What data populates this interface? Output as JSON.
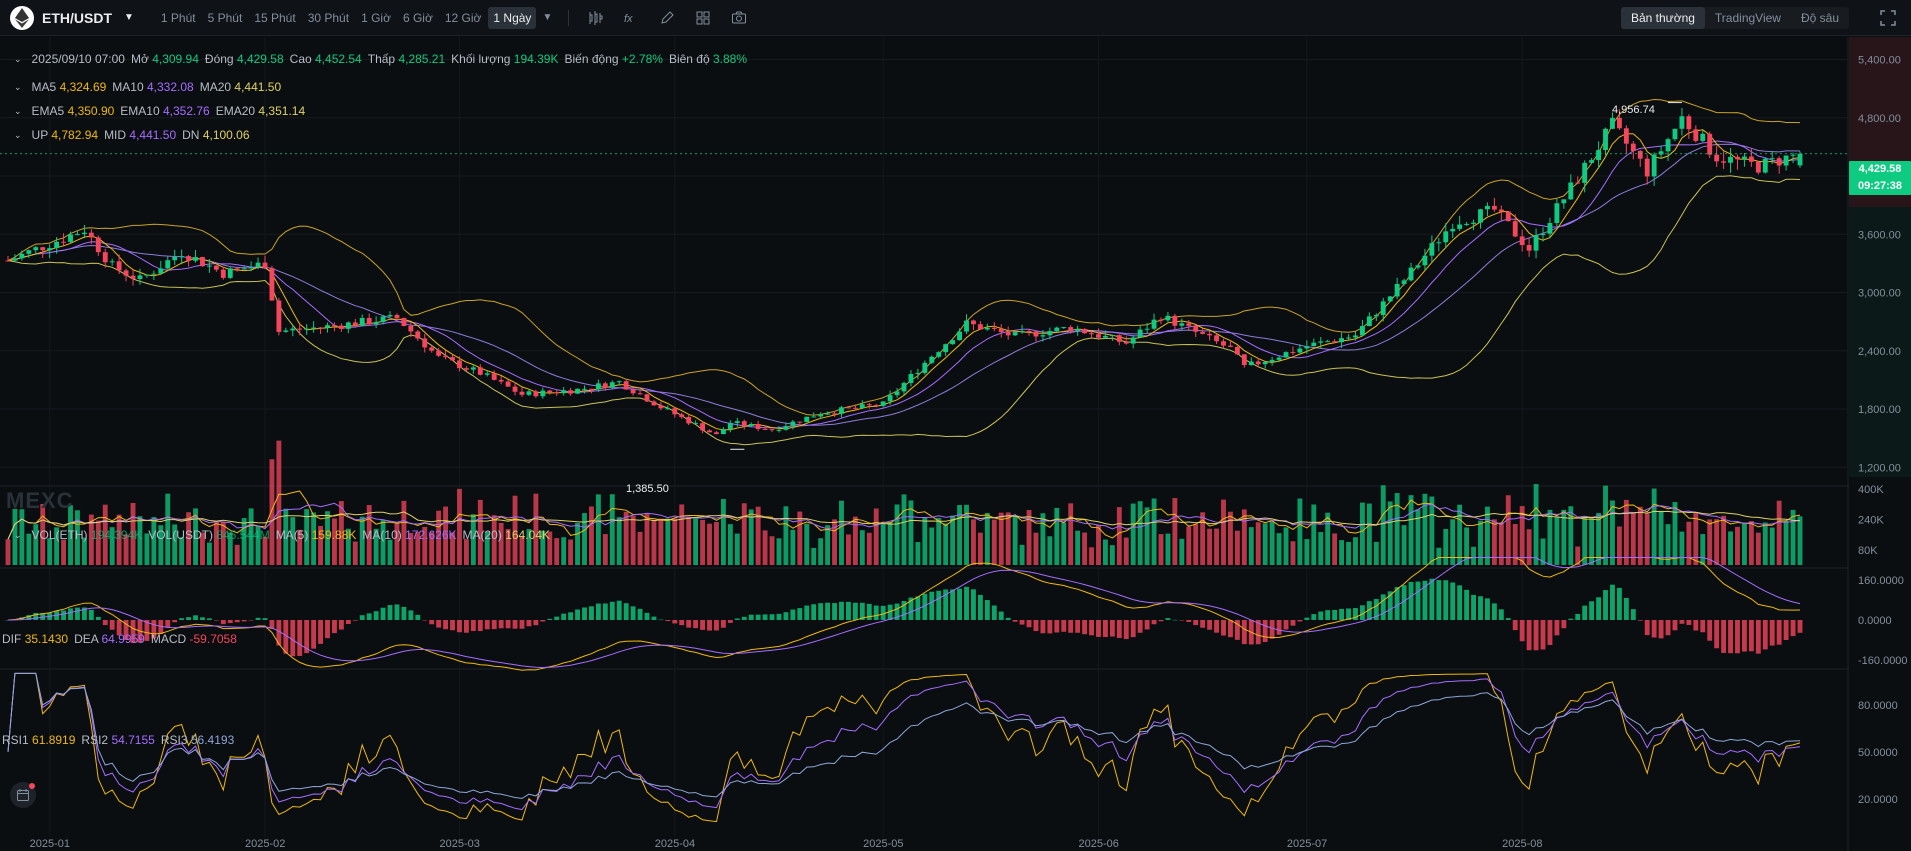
{
  "header": {
    "symbol": "ETH/USDT",
    "intervals": [
      "1 Phút",
      "5 Phút",
      "15 Phút",
      "30 Phút",
      "1 Giờ",
      "6 Giờ",
      "12 Giờ",
      "1 Ngày"
    ],
    "active_interval": "1 Ngày",
    "views": [
      "Bản thường",
      "TradingView",
      "Độ sâu"
    ],
    "active_view": "Bản thường",
    "tools": [
      "indicator-icon",
      "formula-icon",
      "pencil-icon",
      "layout-icon",
      "camera-icon"
    ]
  },
  "ohlc": {
    "date": "2025/09/10 07:00",
    "open_label": "Mở",
    "open": "4,309.94",
    "close_label": "Đóng",
    "close": "4,429.58",
    "high_label": "Cao",
    "high": "4,452.54",
    "low_label": "Thấp",
    "low": "4,285.21",
    "volume_label": "Khối lượng",
    "volume": "194.39K",
    "change_label": "Biến động",
    "change": "+2.78%",
    "amplitude_label": "Biên độ",
    "amplitude": "3.88%"
  },
  "ma": {
    "ma5_label": "MA5",
    "ma5": "4,324.69",
    "ma10_label": "MA10",
    "ma10": "4,332.08",
    "ma20_label": "MA20",
    "ma20": "4,441.50"
  },
  "ema": {
    "ema5_label": "EMA5",
    "ema5": "4,350.90",
    "ema10_label": "EMA10",
    "ema10": "4,352.76",
    "ema20_label": "EMA20",
    "ema20": "4,351.14"
  },
  "boll": {
    "up_label": "UP",
    "up": "4,782.94",
    "mid_label": "MID",
    "mid": "4,441.50",
    "dn_label": "DN",
    "dn": "4,100.06"
  },
  "vol": {
    "eth_label": "VOL(ETH)",
    "eth": "194.394K",
    "usdt_label": "VOL(USDT)",
    "usdt": "845.544M",
    "ma5_label": "MA(5)",
    "ma5": "159.88K",
    "ma10_label": "MA(10)",
    "ma10": "172.626K",
    "ma20_label": "MA(20)",
    "ma20": "164.04K"
  },
  "macd": {
    "dif_label": "DIF",
    "dif": "35.1430",
    "dea_label": "DEA",
    "dea": "64.9959",
    "macd_label": "MACD",
    "macd": "-59.7058"
  },
  "rsi": {
    "rsi1_label": "RSI1",
    "rsi1": "61.8919",
    "rsi2_label": "RSI2",
    "rsi2": "54.7155",
    "rsi3_label": "RSI3",
    "rsi3": "56.4193"
  },
  "price_axis": [
    "5,400.00",
    "4,800.00",
    "4,200.00",
    "3,600.00",
    "3,000.00",
    "2,400.00",
    "1,800.00",
    "1,200.00"
  ],
  "vol_axis": [
    "400K",
    "240K",
    "80K"
  ],
  "macd_axis": [
    "160.0000",
    "0.0000",
    "-160.0000"
  ],
  "rsi_axis": [
    "80.0000",
    "50.0000",
    "20.0000"
  ],
  "time_axis": [
    "2025-01",
    "2025-02",
    "2025-03",
    "2025-04",
    "2025-05",
    "2025-06",
    "2025-07",
    "2025-08"
  ],
  "current_price": "4,429.58",
  "countdown": "09:27:38",
  "high_marker": "4,956.74",
  "low_marker": "1,385.50",
  "watermark": "MEXC",
  "colors": {
    "up": "#0ecb81",
    "down": "#f6465d",
    "ma5": "#f0b90b",
    "ma10": "#a46dff",
    "ma20": "#e0d264",
    "bg": "#0b0e11"
  },
  "chart_data": {
    "type": "candlestick",
    "x_range": [
      "2024-12-26",
      "2025-09-10"
    ],
    "ylim": [
      1100,
      5550
    ],
    "close_path": [
      [
        "2024-12-26",
        3330
      ],
      [
        "2025-01-06",
        3650
      ],
      [
        "2025-01-10",
        3270
      ],
      [
        "2025-01-14",
        3130
      ],
      [
        "2025-01-20",
        3420
      ],
      [
        "2025-01-26",
        3200
      ],
      [
        "2025-02-01",
        3300
      ],
      [
        "2025-02-03",
        2600
      ],
      [
        "2025-02-10",
        2650
      ],
      [
        "2025-02-20",
        2740
      ],
      [
        "2025-02-26",
        2330
      ],
      [
        "2025-03-04",
        2170
      ],
      [
        "2025-03-10",
        1950
      ],
      [
        "2025-03-18",
        2000
      ],
      [
        "2025-03-24",
        2080
      ],
      [
        "2025-03-30",
        1820
      ],
      [
        "2025-04-07",
        1530
      ],
      [
        "2025-04-09",
        1660
      ],
      [
        "2025-04-15",
        1590
      ],
      [
        "2025-04-22",
        1760
      ],
      [
        "2025-05-01",
        1850
      ],
      [
        "2025-05-08",
        2350
      ],
      [
        "2025-05-13",
        2680
      ],
      [
        "2025-05-20",
        2550
      ],
      [
        "2025-05-28",
        2640
      ],
      [
        "2025-06-05",
        2480
      ],
      [
        "2025-06-10",
        2760
      ],
      [
        "2025-06-20",
        2420
      ],
      [
        "2025-06-22",
        2230
      ],
      [
        "2025-07-01",
        2450
      ],
      [
        "2025-07-08",
        2560
      ],
      [
        "2025-07-15",
        3130
      ],
      [
        "2025-07-22",
        3720
      ],
      [
        "2025-07-28",
        3850
      ],
      [
        "2025-08-02",
        3450
      ],
      [
        "2025-08-09",
        4180
      ],
      [
        "2025-08-14",
        4720
      ],
      [
        "2025-08-19",
        4250
      ],
      [
        "2025-08-24",
        4800
      ],
      [
        "2025-08-29",
        4400
      ],
      [
        "2025-09-04",
        4300
      ],
      [
        "2025-09-10",
        4429.58
      ]
    ],
    "high_point": [
      "2025-08-24",
      4956.74
    ],
    "low_point": [
      "2025-04-09",
      1385.5
    ],
    "bollinger": {
      "upper": "4,782.94",
      "mid": "4,441.50",
      "lower": "4,100.06"
    },
    "rsi_range": [
      0,
      100
    ],
    "macd_range": [
      -250,
      250
    ]
  }
}
